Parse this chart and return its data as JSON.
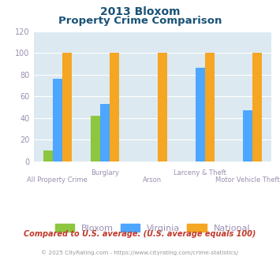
{
  "title_line1": "2013 Bloxom",
  "title_line2": "Property Crime Comparison",
  "categories": [
    "All Property Crime",
    "Burglary",
    "Arson",
    "Larceny & Theft",
    "Motor Vehicle Theft"
  ],
  "bloxom": [
    10,
    42,
    null,
    null,
    null
  ],
  "virginia": [
    76,
    53,
    null,
    86,
    47
  ],
  "national": [
    100,
    100,
    100,
    100,
    100
  ],
  "bar_colors": {
    "bloxom": "#8dc63f",
    "virginia": "#4da6ff",
    "national": "#f5a623"
  },
  "ylim": [
    0,
    120
  ],
  "yticks": [
    0,
    20,
    40,
    60,
    80,
    100,
    120
  ],
  "legend_labels": [
    "Bloxom",
    "Virginia",
    "National"
  ],
  "note": "Compared to U.S. average. (U.S. average equals 100)",
  "footer": "© 2025 CityRating.com - https://www.cityrating.com/crime-statistics/",
  "title_color": "#1a5276",
  "axis_label_color": "#9b8fb0",
  "note_color": "#c0392b",
  "footer_color": "#999999",
  "bg_color": "#dce9f0",
  "bar_width": 0.2
}
